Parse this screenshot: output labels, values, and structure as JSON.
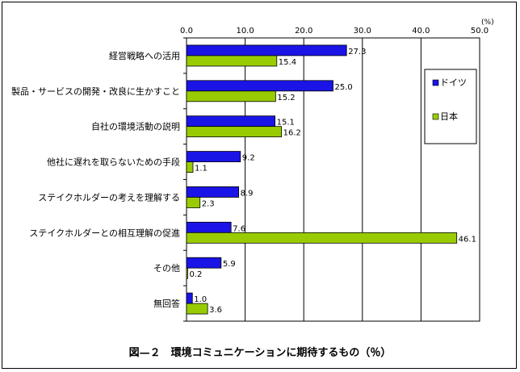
{
  "caption": "図—２　環境コミュニケーションに期待するもの（％）",
  "chart_data": {
    "type": "bar",
    "orientation": "horizontal",
    "unit": "(%)",
    "xlim": [
      0,
      50
    ],
    "xticks": [
      "0.0",
      "10.0",
      "20.0",
      "30.0",
      "40.0",
      "50.0"
    ],
    "grid": true,
    "legend_position": "right",
    "categories": [
      "経営戦略への活用",
      "製品・サービスの開発・改良に生かすこと",
      "自社の環境活動の説明",
      "他社に遅れを取らないための手段",
      "ステイクホルダーの考えを理解する",
      "ステイクホルダーとの相互理解の促進",
      "その他",
      "無回答"
    ],
    "series": [
      {
        "name": "ドイツ",
        "color": "#1a14e6",
        "values": [
          27.3,
          25.0,
          15.1,
          9.2,
          8.9,
          7.6,
          5.9,
          1.0
        ],
        "labels": [
          "27.3",
          "25.0",
          "15.1",
          "9.2",
          "8.9",
          "7.6",
          "5.9",
          "1.0"
        ]
      },
      {
        "name": "日本",
        "color": "#99cc00",
        "values": [
          15.4,
          15.2,
          16.2,
          1.1,
          2.3,
          46.1,
          0.2,
          3.6
        ],
        "labels": [
          "15.4",
          "15.2",
          "16.2",
          "1.1",
          "2.3",
          "46.1",
          "0.2",
          "3.6"
        ]
      }
    ]
  }
}
